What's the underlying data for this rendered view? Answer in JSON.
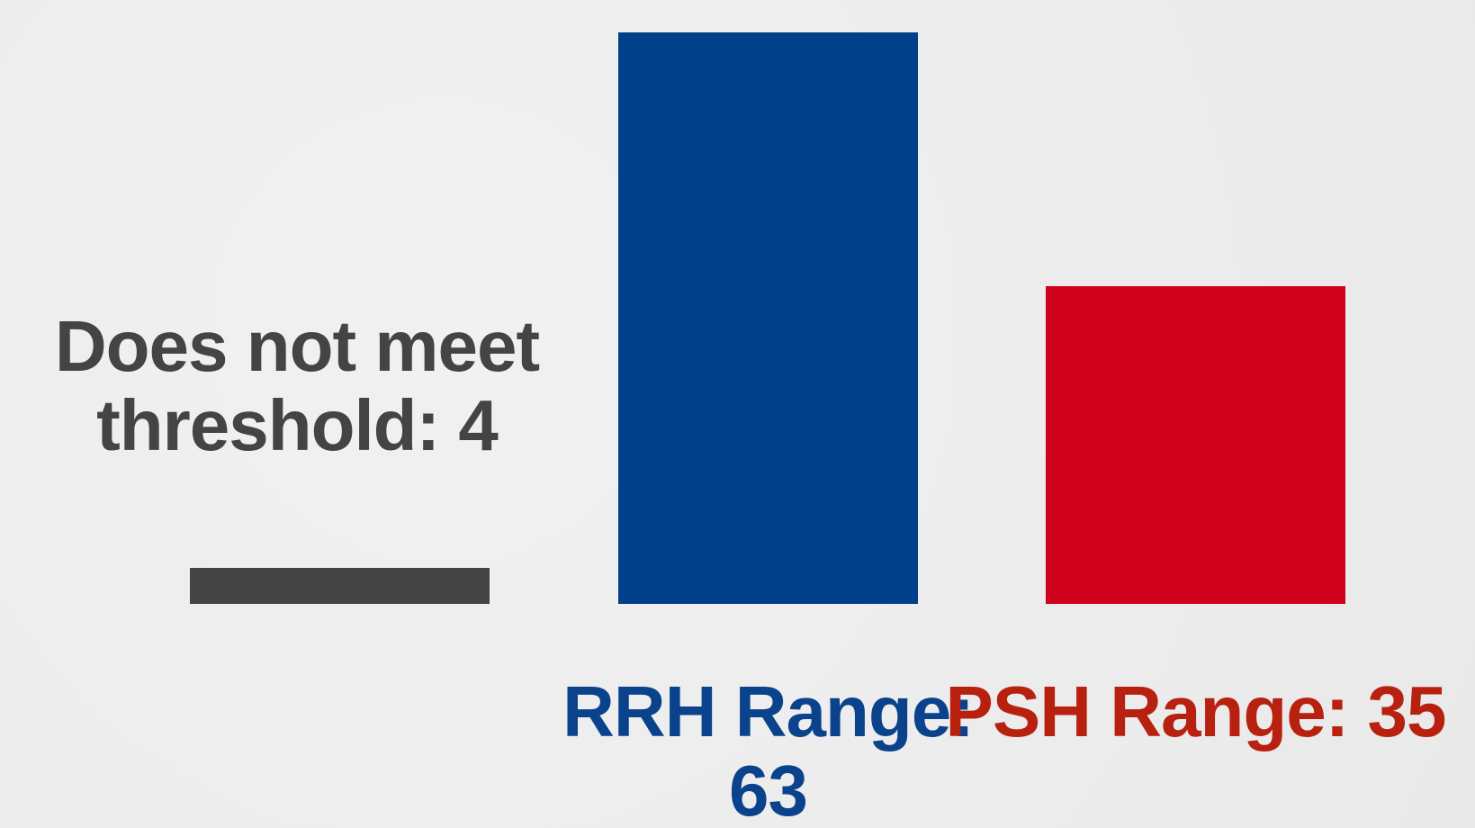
{
  "chart_data": {
    "type": "bar",
    "values": [
      4,
      63,
      35
    ],
    "value_labels": [
      "Does not meet threshold: 4",
      "RRH Range: 63",
      "PSH Range: 35"
    ],
    "colors": [
      "#444444",
      "#003f8a",
      "#d0021b"
    ],
    "label_colors": [
      "#444444",
      "#0a428c",
      "#b8200f"
    ],
    "ylim": [
      0,
      63
    ]
  }
}
